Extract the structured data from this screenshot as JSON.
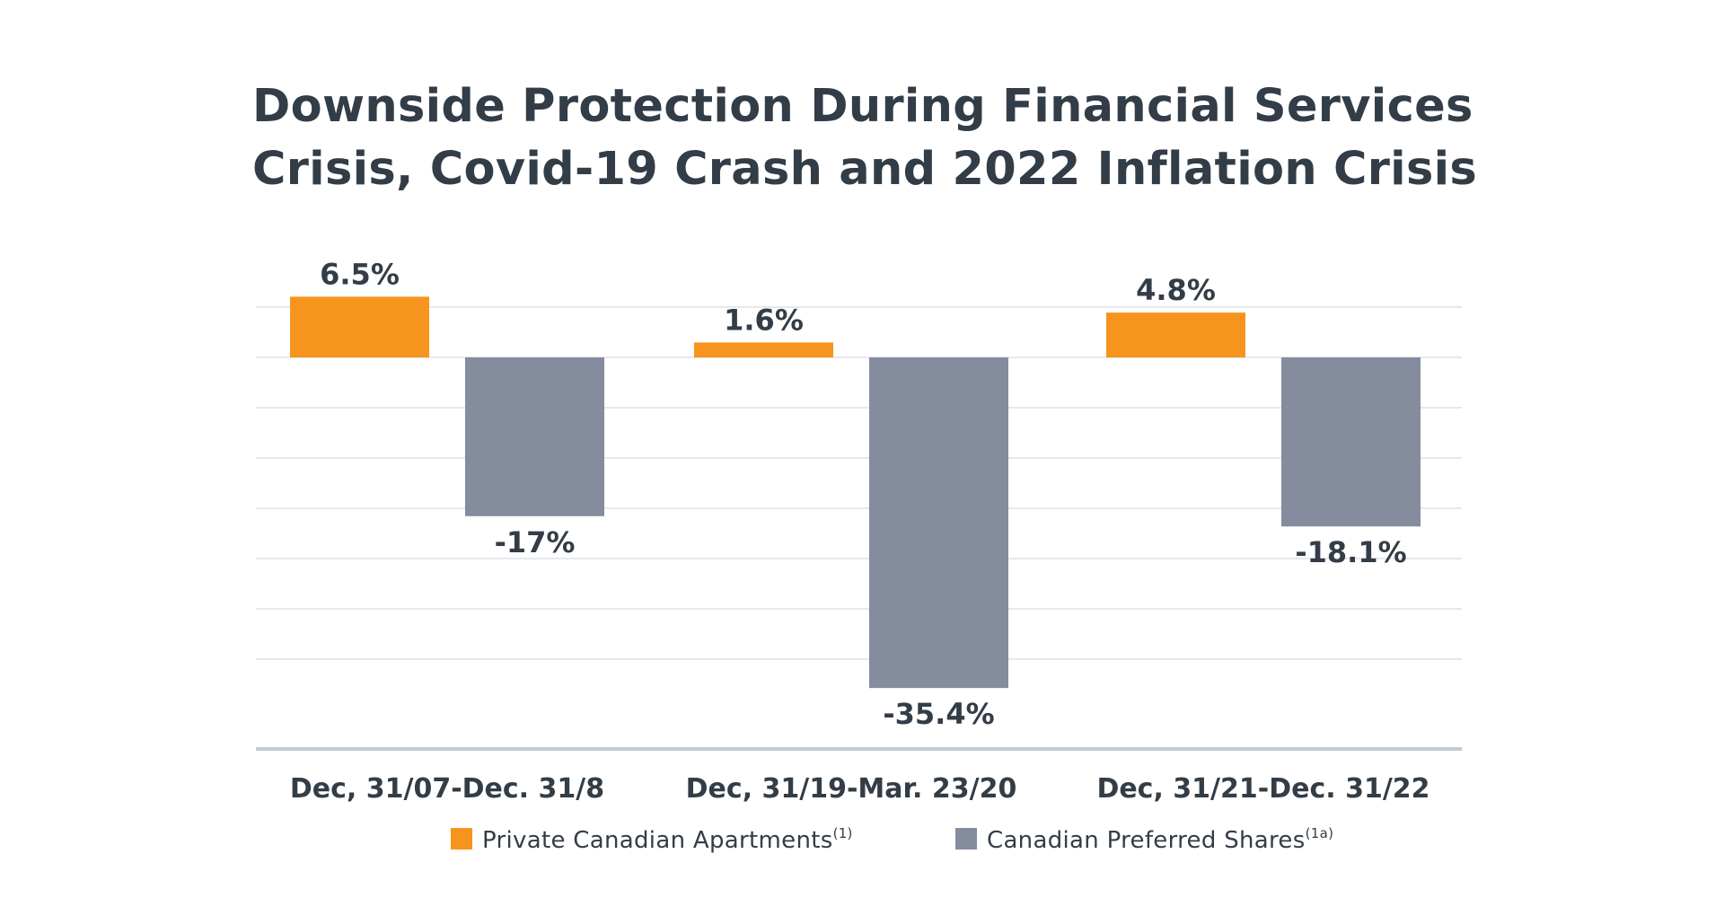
{
  "chart_data": {
    "type": "bar",
    "title": "Downside Protection During Financial Services Crisis, Covid-19 Crash and 2022 Inflation Crisis",
    "title_lines": [
      "Downside Protection During Financial Services",
      "Crisis, Covid-19 Crash and 2022 Inflation Crisis"
    ],
    "categories": [
      "Dec, 31/07-Dec. 31/8",
      "Dec, 31/19-Mar. 23/20",
      "Dec, 31/21-Dec. 31/22"
    ],
    "series": [
      {
        "name": "Private Canadian Apartments",
        "note": "(1)",
        "color": "#f7941d",
        "values": [
          6.5,
          1.6,
          4.8
        ],
        "labels": [
          "6.5%",
          "1.6%",
          "4.8%"
        ]
      },
      {
        "name": "Canadian Preferred Shares",
        "note": "(1a)",
        "color": "#848c9e",
        "values": [
          -17,
          -35.4,
          -18.1
        ],
        "labels": [
          "-17%",
          "-35.4%",
          "-18.1%"
        ]
      }
    ],
    "ylim": [
      -40,
      10
    ],
    "grid": true,
    "legend_position": "bottom"
  }
}
